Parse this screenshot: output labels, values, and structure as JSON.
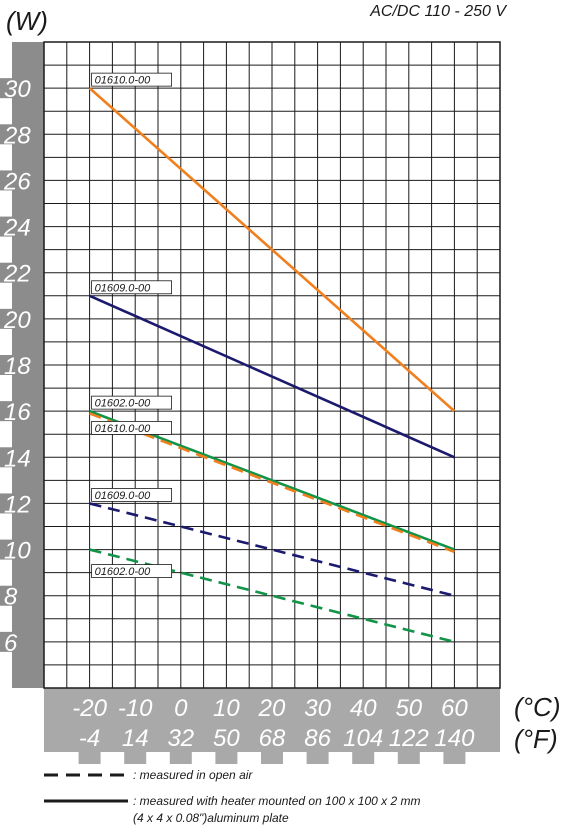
{
  "header": {
    "unit_label": "(W)",
    "supply_label": "AC/DC 110 - 250 V"
  },
  "chart_data": {
    "type": "line",
    "ylabel": "(W)",
    "y_ticks": [
      "30",
      "28",
      "26",
      "24",
      "22",
      "20",
      "18",
      "16",
      "14",
      "12",
      "10",
      "8",
      "6"
    ],
    "ylim": [
      4,
      32
    ],
    "x_celsius": [
      "-20",
      "-10",
      "0",
      "10",
      "20",
      "30",
      "40",
      "50",
      "60"
    ],
    "x_fahrenheit": [
      "-4",
      "14",
      "32",
      "50",
      "68",
      "86",
      "104",
      "122",
      "140"
    ],
    "x_unit_c": "(°C)",
    "x_unit_f": "(°F)",
    "xlim": [
      -30,
      70
    ],
    "grid": true,
    "series": [
      {
        "name": "01610.0-00",
        "mode": "mounted",
        "color": "#f07f1e",
        "x": [
          -20,
          60
        ],
        "values": [
          30,
          16
        ]
      },
      {
        "name": "01609.0-00",
        "mode": "mounted",
        "color": "#1c1a6e",
        "x": [
          -20,
          60
        ],
        "values": [
          21,
          14
        ]
      },
      {
        "name": "01602.0-00",
        "mode": "mounted",
        "color": "#119447",
        "x": [
          -20,
          60
        ],
        "values": [
          16,
          10
        ]
      },
      {
        "name": "01610.0-00",
        "mode": "open_air",
        "color": "#f07f1e",
        "x": [
          -20,
          60
        ],
        "values": [
          15.9,
          9.9
        ]
      },
      {
        "name": "01609.0-00",
        "mode": "open_air",
        "color": "#1c1a6e",
        "x": [
          -20,
          60
        ],
        "values": [
          12,
          8
        ]
      },
      {
        "name": "01602.0-00",
        "mode": "open_air",
        "color": "#119447",
        "x": [
          -20,
          60
        ],
        "values": [
          10,
          6
        ]
      }
    ]
  },
  "legend": {
    "dashed_text": ": measured in open air",
    "solid_text_1": ": measured with heater mounted on 100 x 100 x 2 mm",
    "solid_text_2": "(4 x 4 x 0.08\")aluminum plate"
  }
}
